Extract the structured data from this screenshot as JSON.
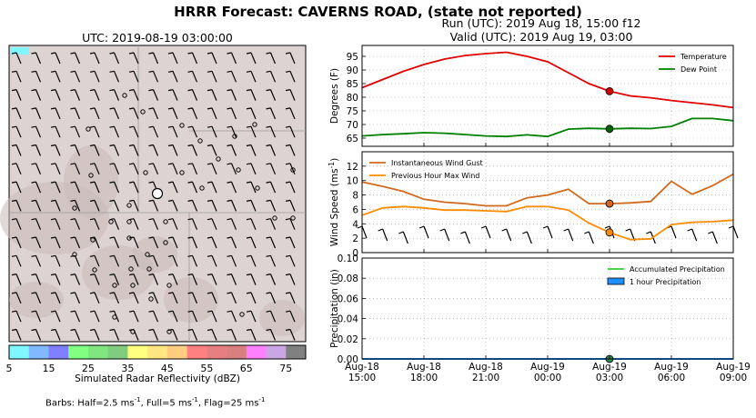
{
  "suptitle": "HRRR Forecast: CAVERNS ROAD, (state not reported)",
  "run_line": "Run (UTC): 2019 Aug 18, 15:00 f12",
  "valid_line": "Valid (UTC): 2019 Aug 19, 03:00",
  "map": {
    "title": "UTC: 2019-08-19 03:00:00",
    "colorbar": {
      "label": "Simulated Radar Reflectivity (dBZ)",
      "ticks": [
        "5",
        "15",
        "25",
        "35",
        "45",
        "55",
        "65",
        "75"
      ],
      "colors": [
        "#80f6ff",
        "#80b9ff",
        "#8080ff",
        "#80ff80",
        "#80e680",
        "#80cd80",
        "#ffff80",
        "#ffe680",
        "#ffcd80",
        "#ff8080",
        "#e68080",
        "#d97f7f",
        "#ff80ff",
        "#c9a6e6",
        "#808080"
      ]
    },
    "station_marker": "station-marker"
  },
  "barb_note_prefix": "Barbs: Half=2.5 ms",
  "barb_note_sup": "-1",
  "barb_note_mid1": ", Full=5 ms",
  "barb_note_mid2": ", Flag=25 ms",
  "chart_data": [
    {
      "type": "line",
      "ylabel": "Degrees (F)",
      "ylim": [
        62,
        99
      ],
      "yticks": [
        65,
        70,
        75,
        80,
        85,
        90,
        95
      ],
      "grid": true,
      "legend": "top-right",
      "x_hours_from_start": [
        0,
        1,
        2,
        3,
        4,
        5,
        6,
        7,
        8,
        9,
        10,
        11,
        12,
        13,
        14,
        15,
        16,
        17,
        18
      ],
      "series": [
        {
          "name": "Temperature",
          "color": "#e00000",
          "values": [
            83.5,
            86.5,
            89.5,
            92,
            94,
            95.3,
            96,
            96.5,
            95,
            93,
            89,
            85,
            82.2,
            80.5,
            79.8,
            78.8,
            78,
            77.2,
            76.2
          ]
        },
        {
          "name": "Dew Point",
          "color": "#007f00",
          "values": [
            65.8,
            66.3,
            66.6,
            67,
            66.8,
            66.3,
            65.8,
            65.6,
            66.2,
            65.6,
            68.3,
            68.6,
            68.4,
            68.6,
            68.5,
            69.3,
            72.2,
            72.2,
            71.4
          ]
        }
      ],
      "marker_hour": 12,
      "markers": [
        {
          "series": "Temperature",
          "value": 82.2,
          "color": "#cc0000"
        },
        {
          "series": "Dew Point",
          "value": 68.4,
          "color": "#006400"
        }
      ]
    },
    {
      "type": "line",
      "ylabel": "Wind Speed (ms",
      "ylabel_sup": "-1",
      "ylim": [
        0,
        14
      ],
      "yticks": [
        0,
        2,
        4,
        6,
        8,
        10,
        12
      ],
      "grid": true,
      "legend": "top-left",
      "x_hours_from_start": [
        0,
        1,
        2,
        3,
        4,
        5,
        6,
        7,
        8,
        9,
        10,
        11,
        12,
        13,
        14,
        15,
        16,
        17,
        18
      ],
      "series": [
        {
          "name": "Instantaneous Wind Gust",
          "color": "#d2691e",
          "values": [
            9.8,
            9.2,
            8.5,
            7.4,
            7.0,
            6.8,
            6.5,
            6.5,
            7.6,
            8.0,
            8.8,
            6.8,
            6.8,
            6.9,
            7.1,
            9.9,
            8.1,
            9.3,
            10.9
          ]
        },
        {
          "name": "Previous Hour Max Wind",
          "color": "#ff8c00",
          "values": [
            5.2,
            6.2,
            6.4,
            6.2,
            5.9,
            5.9,
            5.8,
            5.7,
            6.4,
            6.4,
            5.9,
            4.1,
            2.8,
            1.8,
            1.9,
            3.9,
            4.2,
            4.3,
            4.5
          ]
        }
      ],
      "marker_hour": 12,
      "markers": [
        {
          "series": "Instantaneous Wind Gust",
          "value": 6.8,
          "color": "#d2691e"
        },
        {
          "series": "Previous Hour Max Wind",
          "value": 2.8,
          "color": "#ff8c00"
        }
      ],
      "barbs_at_hours": [
        0,
        1,
        2,
        3,
        4,
        5,
        6,
        7,
        8,
        9,
        10,
        11,
        12,
        13,
        14,
        15,
        16,
        17,
        18
      ]
    },
    {
      "type": "line",
      "ylabel": "Precipitation (in)",
      "ylim": [
        0,
        0.1
      ],
      "yticks": [
        "0.00",
        "0.02",
        "0.04",
        "0.06",
        "0.08",
        "0.10"
      ],
      "grid": true,
      "legend": "top-right",
      "x_hours_from_start": [
        0,
        1,
        2,
        3,
        4,
        5,
        6,
        7,
        8,
        9,
        10,
        11,
        12,
        13,
        14,
        15,
        16,
        17,
        18
      ],
      "series": [
        {
          "name": "Accumulated Precipitation",
          "color": "#32cd32",
          "values": [
            0,
            0,
            0,
            0,
            0,
            0,
            0,
            0,
            0,
            0,
            0,
            0,
            0,
            0,
            0,
            0,
            0,
            0,
            0
          ]
        },
        {
          "name": "1 hour Precipitation",
          "color": "#1e90ff",
          "values": [
            0,
            0,
            0,
            0,
            0,
            0,
            0,
            0,
            0,
            0,
            0,
            0,
            0,
            0,
            0,
            0,
            0,
            0,
            0
          ]
        }
      ],
      "marker_hour": 12,
      "markers": [
        {
          "series": "Accumulated Precipitation",
          "value": 0,
          "color": "#2e8b57"
        }
      ]
    }
  ],
  "x_axis": {
    "tick_hours": [
      0,
      3,
      6,
      9,
      12,
      15,
      18
    ],
    "tick_line1": [
      "Aug-18",
      "Aug-18",
      "Aug-18",
      "Aug-19",
      "Aug-19",
      "Aug-19",
      "Aug-19"
    ],
    "tick_line2": [
      "15:00",
      "18:00",
      "21:00",
      "00:00",
      "03:00",
      "06:00",
      "09:00"
    ]
  }
}
